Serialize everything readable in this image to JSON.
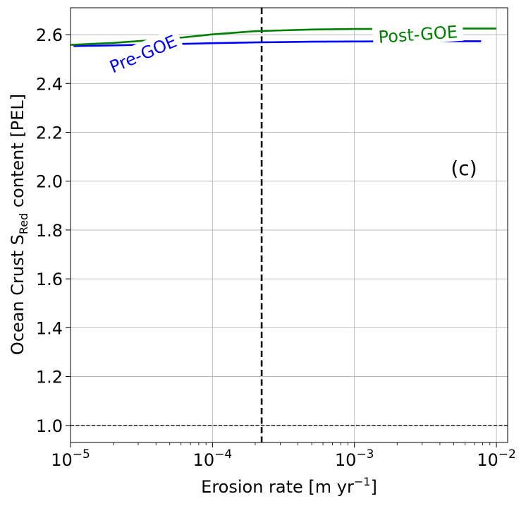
{
  "chart_data": {
    "type": "line",
    "xscale": "log",
    "xlabel_main": "Erosion rate [m yr",
    "xlabel_sup": "−1",
    "xlabel_end": "]",
    "ylabel_main": "Ocean Crust S",
    "ylabel_sub": "Red",
    "ylabel_end": " content [PEL]",
    "xlim": [
      1e-05,
      0.012
    ],
    "ylim": [
      0.93,
      2.71
    ],
    "grid": true,
    "x_ticks": [
      {
        "value": 1e-05,
        "base": "10",
        "exp": "−5"
      },
      {
        "value": 0.0001,
        "base": "10",
        "exp": "−4"
      },
      {
        "value": 0.001,
        "base": "10",
        "exp": "−3"
      },
      {
        "value": 0.01,
        "base": "10",
        "exp": "−2"
      }
    ],
    "y_ticks": [
      {
        "value": 1.0,
        "label": "1.0"
      },
      {
        "value": 1.2,
        "label": "1.2"
      },
      {
        "value": 1.4,
        "label": "1.4"
      },
      {
        "value": 1.6,
        "label": "1.6"
      },
      {
        "value": 1.8,
        "label": "1.8"
      },
      {
        "value": 2.0,
        "label": "2.0"
      },
      {
        "value": 2.2,
        "label": "2.2"
      },
      {
        "value": 2.4,
        "label": "2.4"
      },
      {
        "value": 2.6,
        "label": "2.6"
      }
    ],
    "series": [
      {
        "name": "Pre-GOE",
        "color": "#0000ff",
        "x": [
          1.05e-05,
          2e-05,
          5e-05,
          0.0001,
          0.0002,
          0.0005,
          0.001,
          0.002,
          0.005,
          0.0078
        ],
        "y": [
          2.553,
          2.556,
          2.561,
          2.565,
          2.568,
          2.571,
          2.572,
          2.573,
          2.573,
          2.573
        ]
      },
      {
        "name": "Post-GOE",
        "color": "#008000",
        "x": [
          1e-05,
          2e-05,
          5e-05,
          0.0001,
          0.0002,
          0.0005,
          0.001,
          0.002,
          0.005,
          0.01
        ],
        "y": [
          2.558,
          2.566,
          2.583,
          2.601,
          2.614,
          2.621,
          2.623,
          2.624,
          2.625,
          2.625
        ]
      }
    ],
    "annotations": [
      {
        "text": "Pre-GOE",
        "color": "#0000ff",
        "x": 3.25e-05,
        "y": 2.52,
        "angle": -23
      },
      {
        "text": "Post-GOE",
        "color": "#008000",
        "x": 0.0028,
        "y": 2.6,
        "angle": -4
      }
    ],
    "vline": {
      "x": 0.000222,
      "color": "#000000"
    },
    "hline": {
      "y": 1.0,
      "color": "#000000"
    },
    "panel_label": "(c)"
  }
}
